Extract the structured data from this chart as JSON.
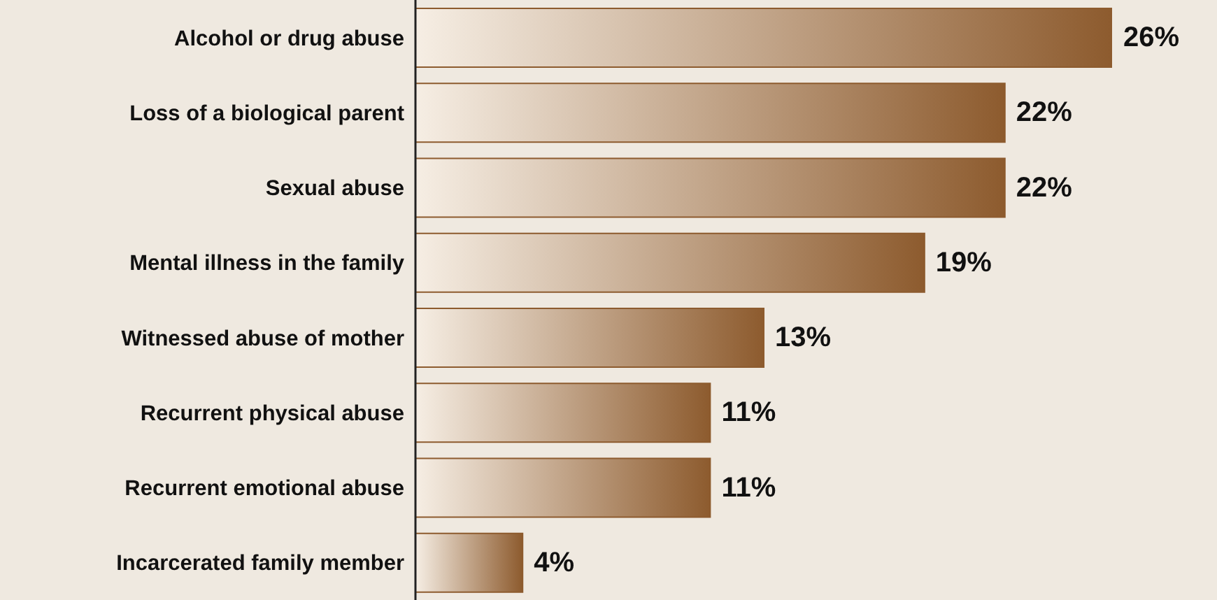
{
  "chart_data": {
    "type": "bar",
    "orientation": "horizontal",
    "categories": [
      "Alcohol or drug abuse",
      "Loss of a biological parent",
      "Sexual abuse",
      "Mental illness in the family",
      "Witnessed abuse of mother",
      "Recurrent physical abuse",
      "Recurrent emotional abuse",
      "Incarcerated family member"
    ],
    "values": [
      26,
      22,
      22,
      19,
      13,
      11,
      11,
      4
    ],
    "value_labels": [
      "26%",
      "22%",
      "22%",
      "19%",
      "13%",
      "11%",
      "11%",
      "4%"
    ],
    "color": "#8d5b2e",
    "grid": false,
    "legend": false
  }
}
